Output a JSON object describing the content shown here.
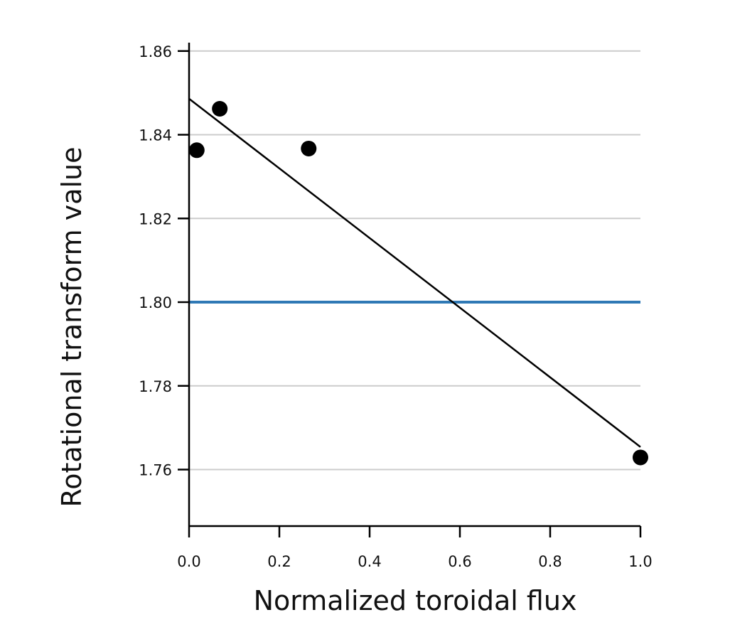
{
  "chart_data": {
    "type": "scatter",
    "title": "",
    "xlabel": "Normalized toroidal flux",
    "ylabel": "Rotational transform value",
    "xlim": [
      0.0,
      1.0
    ],
    "ylim": [
      1.7465,
      1.862
    ],
    "x_ticks": [
      "0.0",
      "0.2",
      "0.4",
      "0.6",
      "0.8",
      "1.0"
    ],
    "x_tick_values": [
      0.0,
      0.2,
      0.4,
      0.6,
      0.8,
      1.0
    ],
    "y_ticks": [
      "1.76",
      "1.78",
      "1.80",
      "1.82",
      "1.84",
      "1.86"
    ],
    "y_tick_values": [
      1.76,
      1.78,
      1.8,
      1.82,
      1.84,
      1.86
    ],
    "grid": "horizontal",
    "points": [
      {
        "x": 0.017,
        "y": 1.8363
      },
      {
        "x": 0.068,
        "y": 1.8462
      },
      {
        "x": 0.265,
        "y": 1.8367
      },
      {
        "x": 1.0,
        "y": 1.7629
      }
    ],
    "fit_line": {
      "x": [
        0.0,
        1.0
      ],
      "y": [
        1.8486,
        1.7654
      ]
    },
    "reference_line": {
      "y": 1.8
    },
    "colors": {
      "points": "#000000",
      "fit_line": "#000000",
      "reference_line": "#2f79b5",
      "grid": "#cccccc",
      "axis": "#000000"
    }
  }
}
